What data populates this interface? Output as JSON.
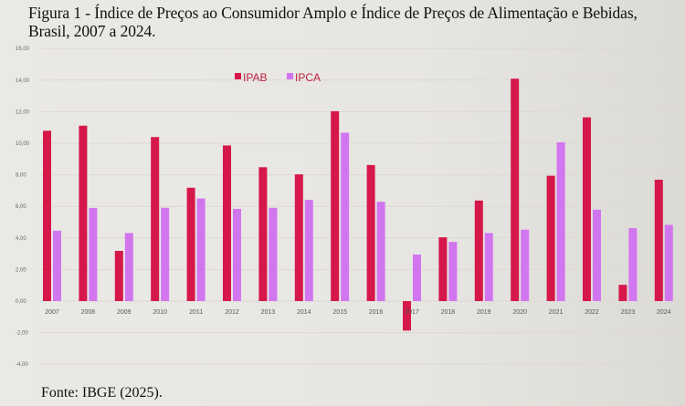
{
  "title": "Figura 1 - Índice de Preços ao Consumidor Amplo e Índice de Preços de Alimentação e Bebidas, Brasil, 2007 a 2024.",
  "source": "Fonte: IBGE (2025).",
  "chart_data": {
    "type": "bar",
    "title": "Figura 1 - Índice de Preços ao Consumidor Amplo e Índice de Preços de Alimentação e Bebidas, Brasil, 2007 a 2024.",
    "xlabel": "",
    "ylabel": "",
    "ylim": [
      -4,
      16
    ],
    "yticks": [
      "-4,00",
      "-2,00",
      "0,00",
      "2,00",
      "4,00",
      "6,00",
      "8,00",
      "10,00",
      "12,00",
      "14,00",
      "16,00"
    ],
    "grid": true,
    "legend": "top-center",
    "categories": [
      "2007",
      "2008",
      "2009",
      "2010",
      "2011",
      "2012",
      "2013",
      "2014",
      "2015",
      "2016",
      "2017",
      "2018",
      "2019",
      "2020",
      "2021",
      "2022",
      "2023",
      "2024"
    ],
    "series": [
      {
        "name": "IPAB",
        "color": "#d5174a",
        "values": [
          10.79,
          11.11,
          3.18,
          10.39,
          7.18,
          9.86,
          8.48,
          8.03,
          12.03,
          8.62,
          -1.87,
          4.04,
          6.37,
          14.09,
          7.94,
          11.64,
          1.03,
          7.69
        ]
      },
      {
        "name": "IPCA",
        "color": "#d176ef",
        "values": [
          4.46,
          5.9,
          4.31,
          5.91,
          6.5,
          5.84,
          5.91,
          6.41,
          10.67,
          6.29,
          2.95,
          3.75,
          4.31,
          4.52,
          10.06,
          5.79,
          4.62,
          4.83
        ]
      }
    ]
  }
}
